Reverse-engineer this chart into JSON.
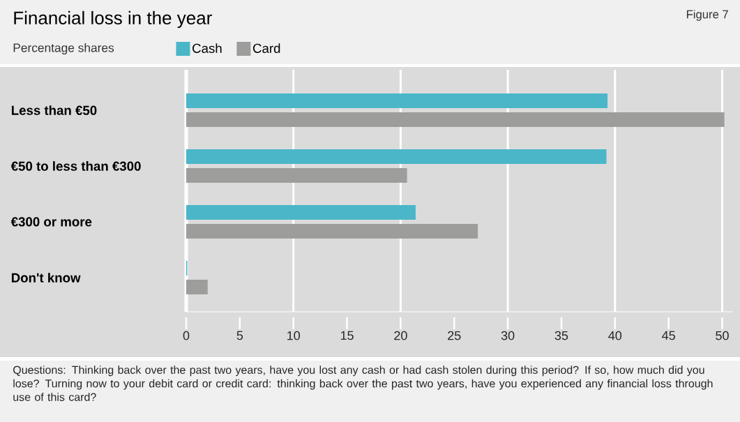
{
  "chart_data": {
    "type": "bar",
    "orientation": "horizontal",
    "title": "Financial loss in the year",
    "subtitle": "Percentage shares",
    "categories": [
      "Less than €50",
      "€50 to less than €300",
      "€300 or more",
      "Don't know"
    ],
    "series": [
      {
        "name": "Cash",
        "color": "#4ab6c8",
        "values": [
          39.3,
          39.2,
          21.4,
          0.1
        ]
      },
      {
        "name": "Card",
        "color": "#9d9d9c",
        "values": [
          50.2,
          20.6,
          27.2,
          2.0
        ]
      }
    ],
    "xlim": [
      0,
      51
    ],
    "xticks": [
      0,
      5,
      10,
      15,
      20,
      25,
      30,
      35,
      40,
      45,
      50
    ],
    "grid": "x",
    "legend": "top left",
    "annotations": [
      "Figure 7",
      "Questions: Thinking back over the past two years, have you lost any cash or had cash stolen during this period? If so, how much did you lose? Turning now to your debit card or credit card: thinking back over the past two years, have you experienced any financial loss through use of this card?"
    ]
  }
}
